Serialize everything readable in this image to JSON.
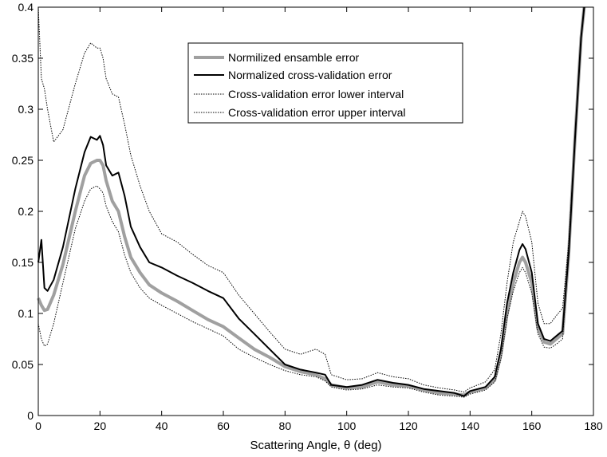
{
  "chart_data": {
    "type": "line",
    "title": "",
    "xlabel": "Scattering Angle, θ (deg)",
    "ylabel": "",
    "xlim": [
      0,
      180
    ],
    "ylim": [
      0,
      0.4
    ],
    "xticks": [
      "0",
      "20",
      "40",
      "60",
      "80",
      "100",
      "120",
      "140",
      "160",
      "180"
    ],
    "yticks": [
      "0",
      "0.05",
      "0.1",
      "0.15",
      "0.2",
      "0.25",
      "0.3",
      "0.35",
      "0.4"
    ],
    "grid": false,
    "legend_position": "top-center",
    "series": [
      {
        "name": "Normilized ensamble error",
        "style": "thick-solid",
        "color": "#a0a0a0",
        "x": [
          0,
          1,
          2,
          3,
          5,
          8,
          12,
          15,
          17,
          19,
          20,
          21,
          22,
          24,
          26,
          28,
          30,
          33,
          36,
          40,
          45,
          50,
          55,
          60,
          65,
          70,
          75,
          80,
          85,
          90,
          93,
          95,
          100,
          105,
          110,
          115,
          120,
          125,
          130,
          135,
          138,
          140,
          145,
          148,
          150,
          152,
          154,
          156,
          157,
          158,
          160,
          162,
          164,
          166,
          168,
          170,
          172,
          174,
          176,
          177
        ],
        "y": [
          0.115,
          0.108,
          0.103,
          0.104,
          0.118,
          0.148,
          0.2,
          0.235,
          0.247,
          0.25,
          0.25,
          0.245,
          0.23,
          0.21,
          0.2,
          0.175,
          0.155,
          0.14,
          0.128,
          0.12,
          0.112,
          0.103,
          0.094,
          0.087,
          0.076,
          0.065,
          0.057,
          0.048,
          0.043,
          0.04,
          0.036,
          0.03,
          0.027,
          0.028,
          0.033,
          0.03,
          0.029,
          0.025,
          0.022,
          0.021,
          0.02,
          0.023,
          0.027,
          0.035,
          0.06,
          0.1,
          0.13,
          0.15,
          0.155,
          0.15,
          0.13,
          0.085,
          0.072,
          0.07,
          0.075,
          0.08,
          0.16,
          0.27,
          0.37,
          0.4
        ]
      },
      {
        "name": "Normalized cross-validation error",
        "style": "solid",
        "color": "#000000",
        "x": [
          0,
          1,
          2,
          3,
          5,
          8,
          12,
          15,
          17,
          19,
          20,
          21,
          22,
          24,
          26,
          28,
          30,
          33,
          36,
          40,
          45,
          50,
          55,
          60,
          65,
          70,
          75,
          80,
          85,
          90,
          93,
          95,
          100,
          105,
          110,
          115,
          120,
          125,
          130,
          135,
          138,
          140,
          145,
          148,
          150,
          152,
          154,
          156,
          157,
          158,
          160,
          162,
          164,
          166,
          168,
          170,
          172,
          174,
          176,
          177
        ],
        "y": [
          0.15,
          0.172,
          0.125,
          0.122,
          0.133,
          0.165,
          0.222,
          0.258,
          0.273,
          0.27,
          0.274,
          0.265,
          0.245,
          0.235,
          0.238,
          0.215,
          0.185,
          0.165,
          0.15,
          0.145,
          0.137,
          0.13,
          0.122,
          0.115,
          0.095,
          0.08,
          0.065,
          0.05,
          0.045,
          0.042,
          0.04,
          0.03,
          0.028,
          0.03,
          0.035,
          0.032,
          0.03,
          0.026,
          0.024,
          0.022,
          0.019,
          0.024,
          0.028,
          0.038,
          0.065,
          0.11,
          0.14,
          0.162,
          0.168,
          0.163,
          0.14,
          0.09,
          0.075,
          0.073,
          0.078,
          0.083,
          0.16,
          0.27,
          0.37,
          0.4
        ]
      },
      {
        "name": "Cross-validation error lower interval",
        "style": "dotted",
        "color": "#000000",
        "x": [
          0,
          1,
          2,
          3,
          5,
          8,
          12,
          15,
          17,
          19,
          20,
          21,
          22,
          24,
          26,
          28,
          30,
          33,
          36,
          40,
          45,
          50,
          55,
          60,
          65,
          70,
          75,
          80,
          85,
          90,
          93,
          95,
          100,
          105,
          110,
          115,
          120,
          125,
          130,
          135,
          138,
          140,
          145,
          148,
          150,
          152,
          154,
          156,
          157,
          158,
          160,
          162,
          164,
          166,
          168,
          170,
          172,
          174,
          176,
          177
        ],
        "y": [
          0.09,
          0.075,
          0.068,
          0.07,
          0.09,
          0.13,
          0.183,
          0.21,
          0.222,
          0.225,
          0.222,
          0.218,
          0.205,
          0.19,
          0.18,
          0.157,
          0.14,
          0.125,
          0.115,
          0.108,
          0.1,
          0.092,
          0.085,
          0.078,
          0.065,
          0.057,
          0.05,
          0.044,
          0.04,
          0.038,
          0.034,
          0.028,
          0.025,
          0.026,
          0.03,
          0.028,
          0.027,
          0.023,
          0.02,
          0.019,
          0.018,
          0.021,
          0.025,
          0.033,
          0.055,
          0.095,
          0.122,
          0.14,
          0.145,
          0.14,
          0.12,
          0.08,
          0.067,
          0.066,
          0.07,
          0.075,
          0.16,
          0.27,
          0.37,
          0.4
        ]
      },
      {
        "name": "Cross-validation error upper interval",
        "style": "dotted",
        "color": "#000000",
        "x": [
          0,
          1,
          2,
          3,
          5,
          8,
          12,
          15,
          17,
          19,
          20,
          21,
          22,
          24,
          26,
          28,
          30,
          33,
          36,
          40,
          45,
          50,
          55,
          60,
          65,
          70,
          75,
          80,
          85,
          90,
          93,
          95,
          100,
          105,
          110,
          115,
          120,
          125,
          130,
          135,
          138,
          140,
          145,
          148,
          150,
          152,
          154,
          156,
          157,
          158,
          160,
          162,
          164,
          166,
          168,
          170,
          172,
          174,
          176,
          177
        ],
        "y": [
          0.4,
          0.33,
          0.32,
          0.3,
          0.268,
          0.28,
          0.325,
          0.355,
          0.365,
          0.36,
          0.36,
          0.35,
          0.33,
          0.315,
          0.312,
          0.285,
          0.255,
          0.225,
          0.2,
          0.178,
          0.17,
          0.158,
          0.147,
          0.14,
          0.118,
          0.1,
          0.082,
          0.065,
          0.06,
          0.065,
          0.06,
          0.04,
          0.035,
          0.036,
          0.042,
          0.038,
          0.036,
          0.03,
          0.027,
          0.025,
          0.023,
          0.027,
          0.033,
          0.045,
          0.08,
          0.13,
          0.17,
          0.19,
          0.2,
          0.195,
          0.17,
          0.11,
          0.09,
          0.09,
          0.098,
          0.105,
          0.17,
          0.27,
          0.37,
          0.4
        ]
      }
    ]
  }
}
